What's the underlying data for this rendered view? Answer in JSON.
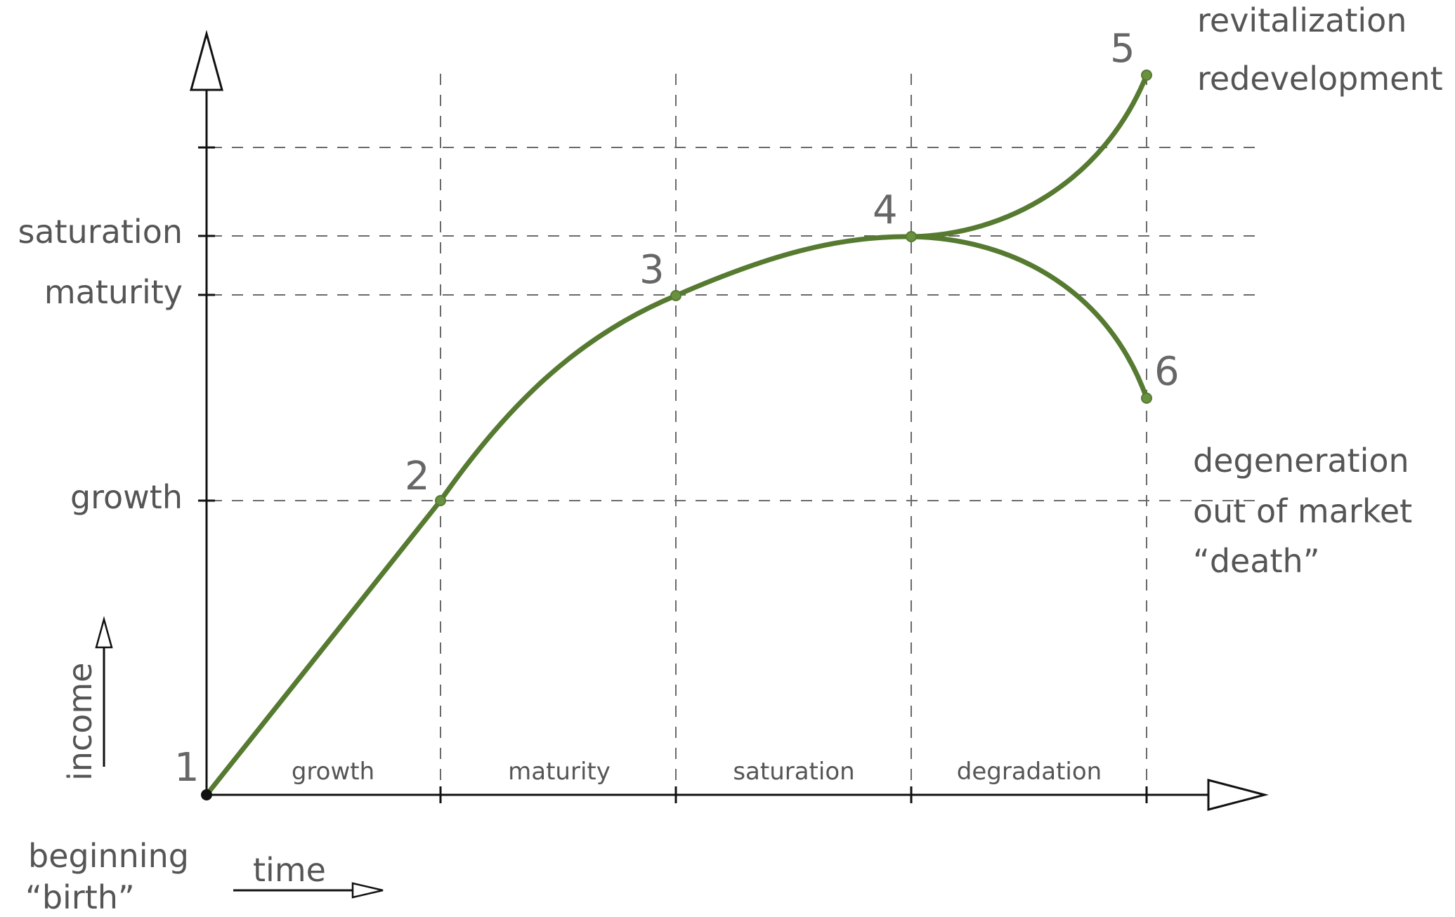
{
  "y_labels": {
    "saturation": "saturation",
    "maturity": "maturity",
    "growth": "growth"
  },
  "phase_labels": [
    "growth",
    "maturity",
    "saturation",
    "degradation"
  ],
  "points": [
    "1",
    "2",
    "3",
    "4",
    "5",
    "6"
  ],
  "annotations": {
    "upper_1": "revitalization",
    "upper_2": "redevelopment",
    "lower_1": "degeneration",
    "lower_2": "out of market",
    "lower_3": "“death”",
    "start_1": "beginning",
    "start_2": "“birth”"
  },
  "legend": {
    "income": "income",
    "time": "time"
  },
  "colors": {
    "curve": "#557a30",
    "text": "#555555",
    "axis": "#111111"
  }
}
